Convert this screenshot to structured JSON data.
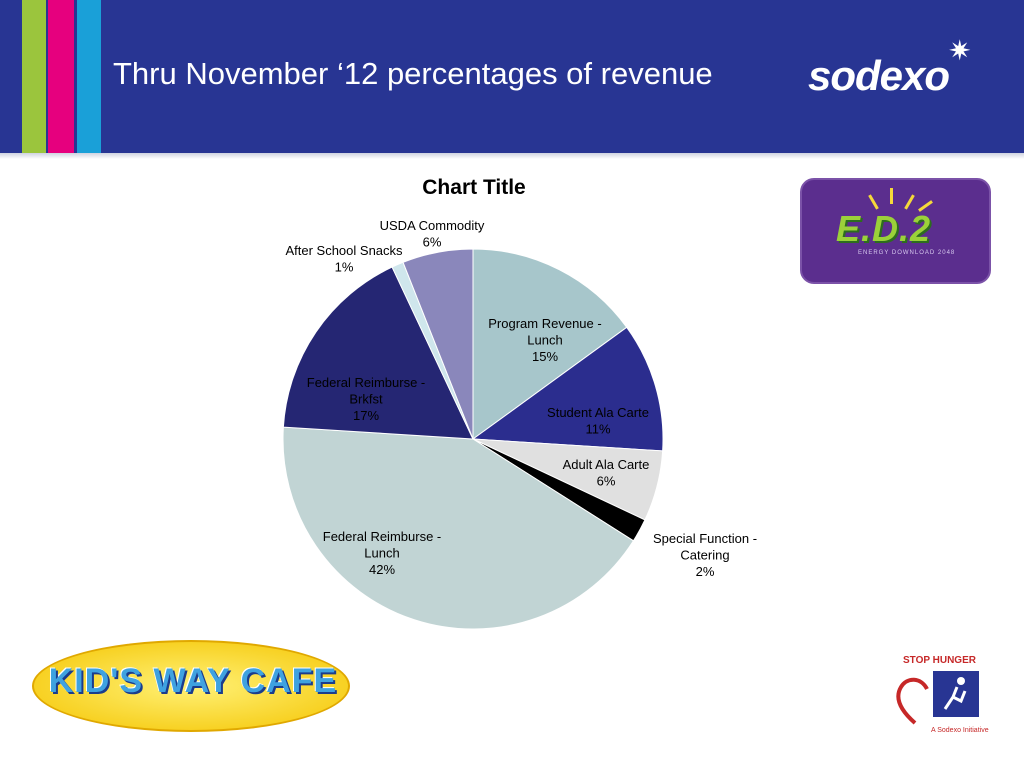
{
  "header": {
    "title": "Thru November ‘12 percentages of revenue",
    "brand": "sodexo",
    "colors": {
      "background": "#283593",
      "stripes": [
        "#9bc53d",
        "#e6007e",
        "#1aa0d8"
      ]
    }
  },
  "chart_data": {
    "type": "pie",
    "title": "Chart Title",
    "slices": [
      {
        "name": "Program Revenue - Lunch",
        "label_lines": [
          "Program Revenue -",
          "Lunch",
          "15%"
        ],
        "value": 15,
        "color": "#a7c6cb"
      },
      {
        "name": "Student Ala Carte",
        "label_lines": [
          "Student Ala Carte",
          "11%"
        ],
        "value": 11,
        "color": "#2b2d8e"
      },
      {
        "name": "Adult Ala Carte",
        "label_lines": [
          "Adult Ala Carte",
          "6%"
        ],
        "value": 6,
        "color": "#e0e0e0"
      },
      {
        "name": "Special Function - Catering",
        "label_lines": [
          "Special Function -",
          "Catering",
          "2%"
        ],
        "value": 2,
        "color": "#000000"
      },
      {
        "name": "Federal Reimburse - Lunch",
        "label_lines": [
          "Federal Reimburse -",
          "Lunch",
          "42%"
        ],
        "value": 42,
        "color": "#c1d4d4"
      },
      {
        "name": "Federal Reimburse - Brkfst",
        "label_lines": [
          "Federal Reimburse -",
          "Brkfst",
          "17%"
        ],
        "value": 17,
        "color": "#252673"
      },
      {
        "name": "After School Snacks",
        "label_lines": [
          "After School Snacks",
          "1%"
        ],
        "value": 1,
        "color": "#cfe6ec"
      },
      {
        "name": "USDA Commodity",
        "label_lines": [
          "USDA Commodity",
          "6%"
        ],
        "value": 6,
        "color": "#8a87bb"
      }
    ]
  },
  "logos": {
    "ed2": {
      "text": "E.D.2",
      "sub": "ENERGY DOWNLOAD 2048"
    },
    "kids_way_cafe": {
      "text": "KID'S WAY CAFE"
    },
    "stop_hunger": {
      "title": "STOP HUNGER",
      "tagline": "A Sodexo Initiative"
    }
  }
}
